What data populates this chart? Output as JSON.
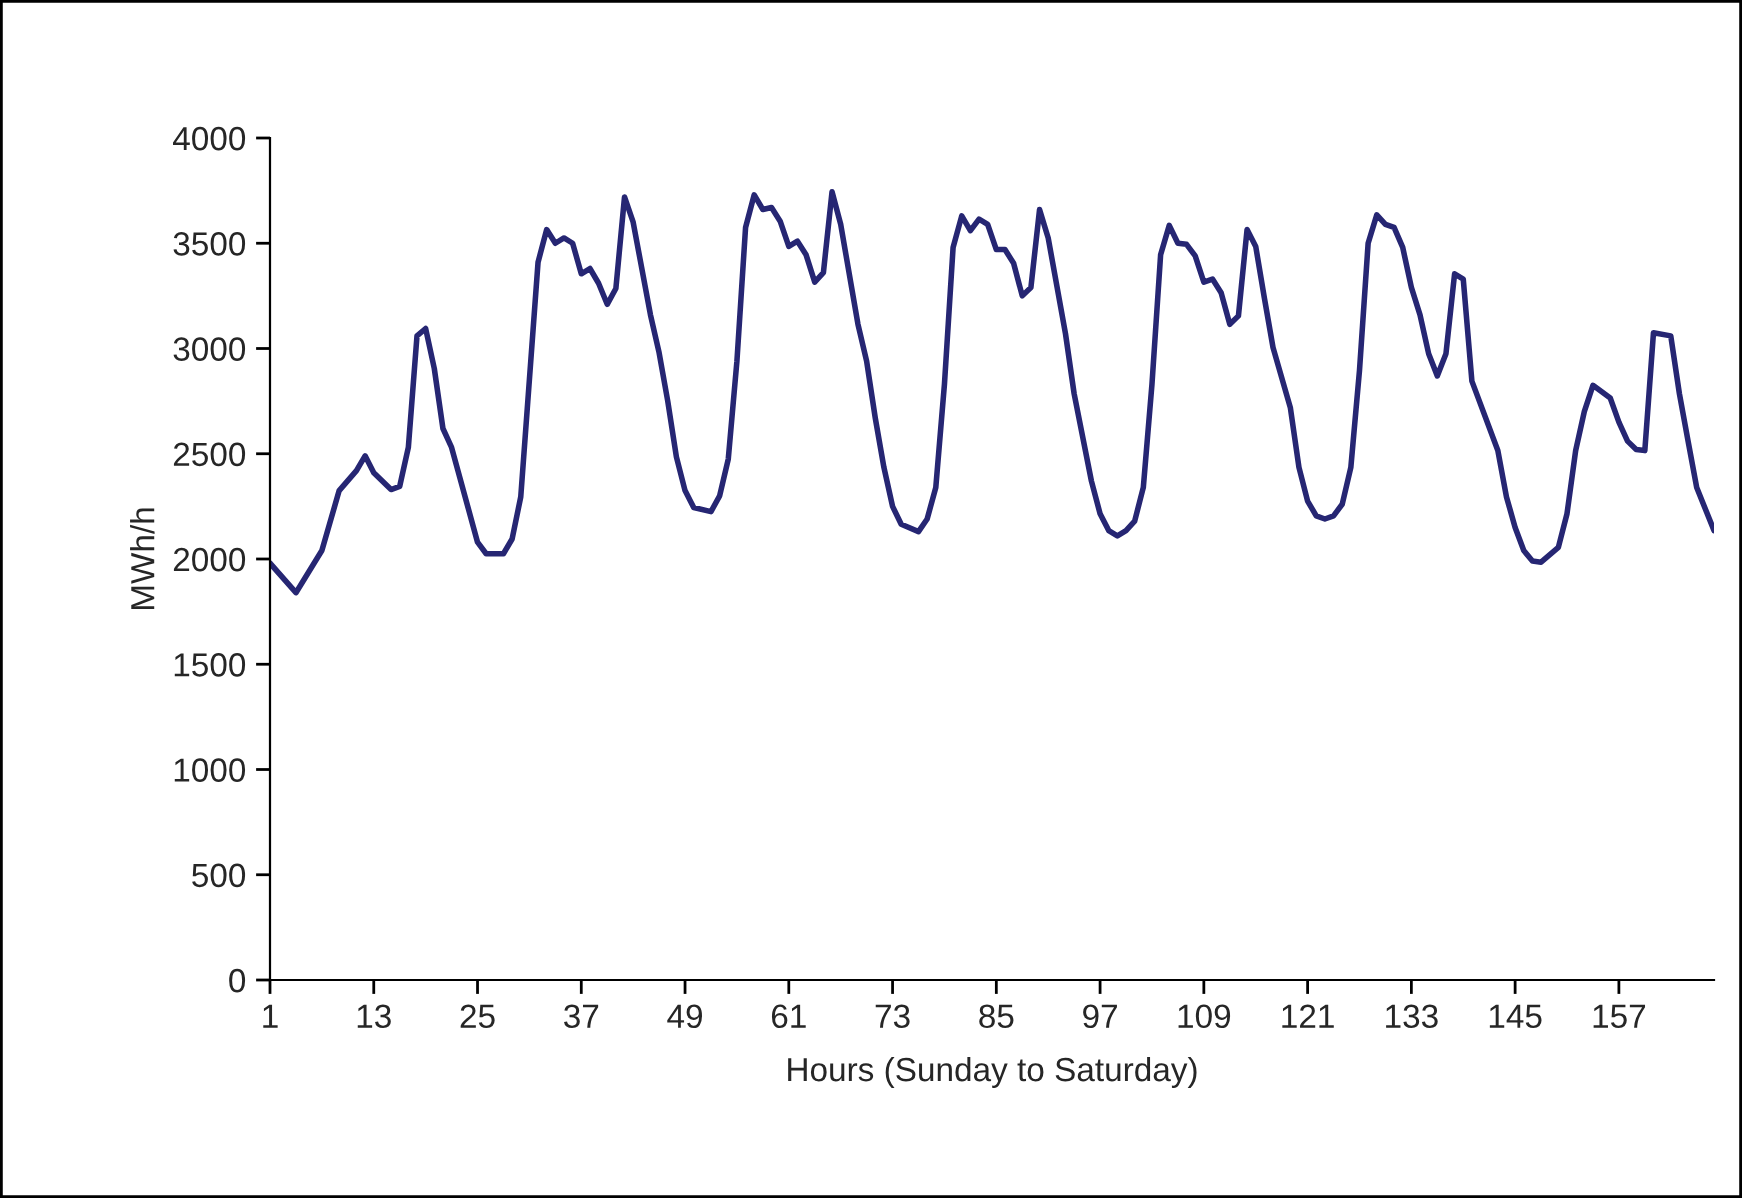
{
  "chart_data": {
    "type": "line",
    "xlabel": "Hours (Sunday to Saturday)",
    "ylabel": "MWh/h",
    "xlim": [
      1,
      168
    ],
    "xticks": [
      1,
      13,
      25,
      37,
      49,
      61,
      73,
      85,
      97,
      109,
      121,
      133,
      145,
      157
    ],
    "ylim": [
      0,
      4000
    ],
    "yticks": [
      0,
      500,
      1000,
      1500,
      2000,
      2500,
      3000,
      3500,
      4000
    ],
    "grid": false,
    "legend": false,
    "marker": "none",
    "line_style": "solid",
    "series": [
      {
        "color": "#262673",
        "x": [
          1,
          4,
          7,
          9,
          11,
          12,
          13,
          15,
          16,
          17,
          18,
          19,
          20,
          21,
          22,
          25,
          26,
          28,
          29,
          30,
          32,
          33,
          34,
          35,
          36,
          37,
          38,
          39,
          40,
          41,
          42,
          43,
          45,
          46,
          47,
          48,
          49,
          50,
          52,
          53,
          54,
          55,
          56,
          57,
          58,
          59,
          60,
          61,
          62,
          63,
          64,
          65,
          66,
          67,
          69,
          70,
          71,
          72,
          73,
          74,
          76,
          77,
          78,
          79,
          80,
          81,
          82,
          83,
          84,
          85,
          86,
          87,
          88,
          89,
          90,
          91,
          93,
          94,
          96,
          97,
          98,
          99,
          100,
          101,
          102,
          103,
          104,
          105,
          106,
          107,
          108,
          109,
          110,
          111,
          112,
          113,
          114,
          115,
          116,
          117,
          119,
          120,
          121,
          122,
          123,
          124,
          125,
          126,
          127,
          128,
          129,
          130,
          131,
          132,
          133,
          134,
          135,
          136,
          137,
          138,
          139,
          140,
          143,
          144,
          145,
          146,
          147,
          148,
          150,
          151,
          152,
          153,
          154,
          156,
          157,
          158,
          159,
          160,
          161,
          163,
          164,
          165,
          166,
          168
        ],
        "values": [
          1980,
          1840,
          2040,
          2325,
          2420,
          2490,
          2410,
          2330,
          2345,
          2530,
          3060,
          3095,
          2905,
          2620,
          2530,
          2080,
          2025,
          2025,
          2095,
          2295,
          3410,
          3565,
          3500,
          3525,
          3500,
          3355,
          3380,
          3310,
          3210,
          3285,
          3720,
          3600,
          3160,
          2980,
          2750,
          2485,
          2325,
          2245,
          2225,
          2300,
          2475,
          2940,
          3575,
          3730,
          3660,
          3670,
          3605,
          3485,
          3510,
          3445,
          3315,
          3360,
          3745,
          3590,
          3115,
          2940,
          2670,
          2435,
          2250,
          2165,
          2130,
          2190,
          2340,
          2830,
          3480,
          3630,
          3560,
          3615,
          3590,
          3470,
          3470,
          3405,
          3250,
          3290,
          3660,
          3525,
          3070,
          2785,
          2370,
          2215,
          2135,
          2110,
          2135,
          2180,
          2340,
          2830,
          3445,
          3585,
          3500,
          3495,
          3440,
          3315,
          3330,
          3265,
          3115,
          3155,
          3565,
          3485,
          3240,
          3005,
          2720,
          2435,
          2275,
          2205,
          2190,
          2205,
          2260,
          2435,
          2895,
          3500,
          3635,
          3590,
          3575,
          3480,
          3290,
          3160,
          2975,
          2870,
          2975,
          3355,
          3330,
          2845,
          2515,
          2295,
          2150,
          2040,
          1990,
          1985,
          2055,
          2215,
          2515,
          2700,
          2825,
          2765,
          2650,
          2560,
          2520,
          2515,
          3075,
          3060,
          2785,
          2560,
          2340,
          2135
        ]
      }
    ]
  }
}
